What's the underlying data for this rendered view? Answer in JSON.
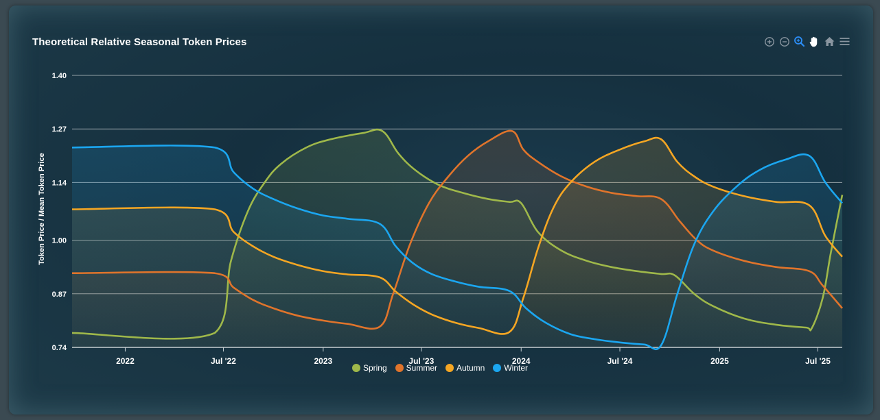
{
  "title": "Theoretical Relative Seasonal Token Prices",
  "toolbar": {
    "zoom_in": "zoom-in-icon",
    "zoom_out": "zoom-out-icon",
    "selection_zoom": "magnifier-icon",
    "pan": "hand-icon",
    "reset": "home-icon",
    "menu": "menu-icon"
  },
  "colors": {
    "spring": "#9fb84a",
    "summer": "#e0742b",
    "autumn": "#f5a623",
    "winter": "#1ba6f0",
    "grid": "#aab4b8",
    "text": "#ffffff",
    "active_tool": "#2c8ef8",
    "tool": "#8a96a0"
  },
  "chart_data": {
    "type": "area",
    "title": "Theoretical Relative Seasonal Token Prices",
    "xlabel": "",
    "ylabel": "Token Price / Mean Token Price",
    "ylim": [
      0.74,
      1.4
    ],
    "yticks": [
      "0.74",
      "0.87",
      "1.00",
      "1.14",
      "1.27",
      "1.40"
    ],
    "xlim": [
      "2021-09-25",
      "2025-08-15"
    ],
    "xticks": [
      {
        "date": "2022-01-01",
        "label": "2022"
      },
      {
        "date": "2022-07-01",
        "label": "Jul '22"
      },
      {
        "date": "2023-01-01",
        "label": "2023"
      },
      {
        "date": "2023-07-01",
        "label": "Jul '23"
      },
      {
        "date": "2024-01-01",
        "label": "2024"
      },
      {
        "date": "2024-07-01",
        "label": "Jul '24"
      },
      {
        "date": "2025-01-01",
        "label": "2025"
      },
      {
        "date": "2025-07-01",
        "label": "Jul '25"
      }
    ],
    "grid": true,
    "legend_position": "bottom-center",
    "series": [
      {
        "name": "Spring",
        "color": "#9fb84a",
        "points": [
          [
            "2021-09-25",
            0.775
          ],
          [
            "2022-06-15",
            0.775
          ],
          [
            "2022-07-15",
            0.95
          ],
          [
            "2022-08-15",
            1.07
          ],
          [
            "2022-09-15",
            1.14
          ],
          [
            "2022-10-15",
            1.185
          ],
          [
            "2022-12-01",
            1.225
          ],
          [
            "2023-01-15",
            1.245
          ],
          [
            "2023-03-15",
            1.26
          ],
          [
            "2023-04-20",
            1.265
          ],
          [
            "2023-05-20",
            1.21
          ],
          [
            "2023-06-20",
            1.17
          ],
          [
            "2023-08-01",
            1.135
          ],
          [
            "2023-09-15",
            1.115
          ],
          [
            "2023-11-01",
            1.1
          ],
          [
            "2023-12-10",
            1.093
          ],
          [
            "2024-01-01",
            1.09
          ],
          [
            "2024-02-01",
            1.02
          ],
          [
            "2024-03-15",
            0.975
          ],
          [
            "2024-05-01",
            0.95
          ],
          [
            "2024-06-15",
            0.935
          ],
          [
            "2024-08-01",
            0.925
          ],
          [
            "2024-09-15",
            0.918
          ],
          [
            "2024-10-10",
            0.915
          ],
          [
            "2024-11-15",
            0.87
          ],
          [
            "2024-12-20",
            0.84
          ],
          [
            "2025-02-15",
            0.81
          ],
          [
            "2025-04-15",
            0.795
          ],
          [
            "2025-06-10",
            0.788
          ],
          [
            "2025-06-20",
            0.787
          ],
          [
            "2025-07-10",
            0.86
          ],
          [
            "2025-07-25",
            0.97
          ],
          [
            "2025-08-15",
            1.11
          ]
        ]
      },
      {
        "name": "Summer",
        "color": "#e0742b",
        "points": [
          [
            "2021-09-25",
            0.92
          ],
          [
            "2022-06-15",
            0.92
          ],
          [
            "2022-07-20",
            0.885
          ],
          [
            "2022-08-25",
            0.855
          ],
          [
            "2022-10-01",
            0.835
          ],
          [
            "2022-11-15",
            0.817
          ],
          [
            "2023-01-01",
            0.805
          ],
          [
            "2023-02-15",
            0.797
          ],
          [
            "2023-04-15",
            0.79
          ],
          [
            "2023-05-10",
            0.87
          ],
          [
            "2023-06-10",
            0.99
          ],
          [
            "2023-07-15",
            1.09
          ],
          [
            "2023-08-20",
            1.155
          ],
          [
            "2023-09-25",
            1.205
          ],
          [
            "2023-11-01",
            1.24
          ],
          [
            "2023-12-15",
            1.265
          ],
          [
            "2024-01-05",
            1.22
          ],
          [
            "2024-02-01",
            1.19
          ],
          [
            "2024-03-15",
            1.155
          ],
          [
            "2024-05-01",
            1.13
          ],
          [
            "2024-06-15",
            1.115
          ],
          [
            "2024-08-01",
            1.107
          ],
          [
            "2024-09-15",
            1.1
          ],
          [
            "2024-10-20",
            1.045
          ],
          [
            "2024-11-20",
            1.0
          ],
          [
            "2024-12-20",
            0.975
          ],
          [
            "2025-02-15",
            0.95
          ],
          [
            "2025-04-15",
            0.935
          ],
          [
            "2025-06-15",
            0.925
          ],
          [
            "2025-07-10",
            0.89
          ],
          [
            "2025-08-15",
            0.835
          ]
        ]
      },
      {
        "name": "Autumn",
        "color": "#f5a623",
        "points": [
          [
            "2021-09-25",
            1.075
          ],
          [
            "2022-06-15",
            1.075
          ],
          [
            "2022-07-20",
            1.02
          ],
          [
            "2022-08-25",
            0.985
          ],
          [
            "2022-10-01",
            0.96
          ],
          [
            "2022-11-15",
            0.94
          ],
          [
            "2023-01-01",
            0.925
          ],
          [
            "2023-02-15",
            0.917
          ],
          [
            "2023-04-15",
            0.91
          ],
          [
            "2023-05-15",
            0.875
          ],
          [
            "2023-06-15",
            0.845
          ],
          [
            "2023-07-20",
            0.82
          ],
          [
            "2023-09-01",
            0.8
          ],
          [
            "2023-10-15",
            0.787
          ],
          [
            "2023-12-10",
            0.777
          ],
          [
            "2024-01-05",
            0.86
          ],
          [
            "2024-02-01",
            0.98
          ],
          [
            "2024-03-01",
            1.08
          ],
          [
            "2024-04-01",
            1.14
          ],
          [
            "2024-05-15",
            1.19
          ],
          [
            "2024-07-01",
            1.22
          ],
          [
            "2024-08-15",
            1.24
          ],
          [
            "2024-09-15",
            1.245
          ],
          [
            "2024-10-15",
            1.19
          ],
          [
            "2024-11-15",
            1.155
          ],
          [
            "2024-12-20",
            1.13
          ],
          [
            "2025-02-15",
            1.107
          ],
          [
            "2025-04-15",
            1.093
          ],
          [
            "2025-06-15",
            1.085
          ],
          [
            "2025-07-15",
            1.01
          ],
          [
            "2025-08-15",
            0.96
          ]
        ]
      },
      {
        "name": "Winter",
        "color": "#1ba6f0",
        "points": [
          [
            "2021-09-25",
            1.225
          ],
          [
            "2022-06-15",
            1.225
          ],
          [
            "2022-07-20",
            1.165
          ],
          [
            "2022-08-25",
            1.125
          ],
          [
            "2022-10-01",
            1.1
          ],
          [
            "2022-11-15",
            1.077
          ],
          [
            "2023-01-01",
            1.06
          ],
          [
            "2023-02-15",
            1.052
          ],
          [
            "2023-04-15",
            1.04
          ],
          [
            "2023-05-15",
            0.985
          ],
          [
            "2023-06-15",
            0.945
          ],
          [
            "2023-07-20",
            0.918
          ],
          [
            "2023-09-01",
            0.9
          ],
          [
            "2023-10-15",
            0.887
          ],
          [
            "2023-12-10",
            0.877
          ],
          [
            "2024-01-10",
            0.835
          ],
          [
            "2024-02-15",
            0.8
          ],
          [
            "2024-04-01",
            0.772
          ],
          [
            "2024-05-15",
            0.76
          ],
          [
            "2024-07-01",
            0.752
          ],
          [
            "2024-08-15",
            0.747
          ],
          [
            "2024-09-15",
            0.745
          ],
          [
            "2024-10-15",
            0.87
          ],
          [
            "2024-11-15",
            0.99
          ],
          [
            "2024-12-20",
            1.07
          ],
          [
            "2025-02-01",
            1.13
          ],
          [
            "2025-03-15",
            1.17
          ],
          [
            "2025-05-01",
            1.195
          ],
          [
            "2025-06-15",
            1.205
          ],
          [
            "2025-07-15",
            1.14
          ],
          [
            "2025-08-15",
            1.09
          ]
        ]
      }
    ]
  }
}
